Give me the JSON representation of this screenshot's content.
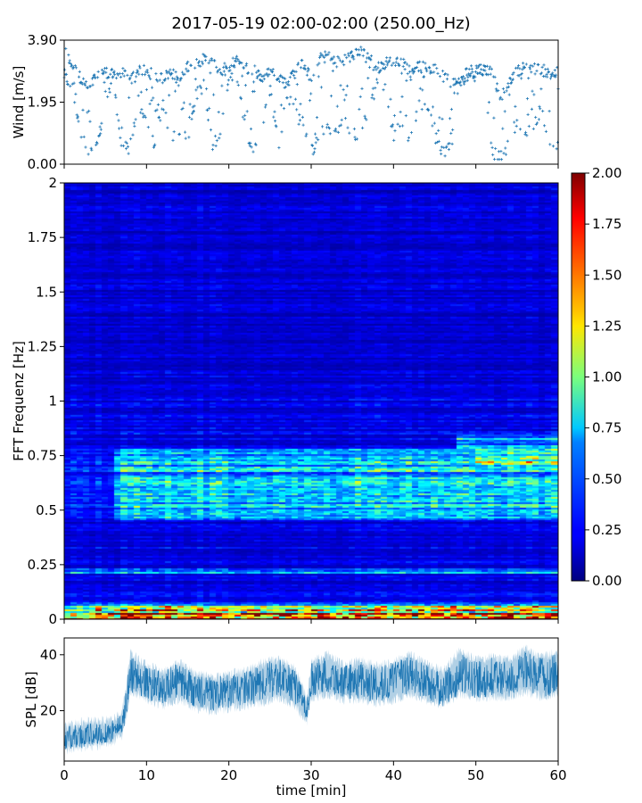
{
  "figure": {
    "title": "2017-05-19 02:00-02:00 (250.00_Hz)"
  },
  "chart_data": [
    {
      "type": "scatter",
      "panel": "wind",
      "ylabel": "Wind [m/s]",
      "xlim": [
        0,
        60
      ],
      "ylim": [
        0,
        3.9
      ],
      "yticks": [
        0.0,
        1.95,
        3.9
      ],
      "ytick_labels": [
        "0.00",
        "1.95",
        "3.90"
      ],
      "marker": "+",
      "color": "#1f77b4",
      "series_x": [
        0,
        1,
        2,
        3,
        4,
        5,
        6,
        7,
        8,
        9,
        10,
        11,
        12,
        13,
        14,
        15,
        16,
        17,
        18,
        19,
        20,
        21,
        22,
        23,
        24,
        25,
        26,
        27,
        28,
        29,
        30,
        31,
        32,
        33,
        34,
        35,
        36,
        37,
        38,
        39,
        40,
        41,
        42,
        43,
        44,
        45,
        46,
        47,
        48,
        49,
        50,
        51,
        52,
        53,
        54,
        55,
        56,
        57,
        58,
        59,
        60
      ],
      "series_y_upper": [
        3.6,
        3.1,
        2.7,
        2.3,
        2.9,
        2.9,
        2.8,
        2.9,
        2.6,
        3.0,
        2.9,
        2.8,
        2.7,
        2.9,
        2.6,
        3.1,
        3.2,
        3.3,
        3.2,
        2.9,
        3.1,
        3.3,
        3.0,
        3.0,
        2.7,
        2.9,
        2.8,
        2.5,
        3.0,
        3.2,
        2.7,
        3.3,
        3.4,
        3.2,
        3.3,
        3.4,
        3.6,
        3.4,
        3.0,
        3.2,
        3.2,
        3.3,
        2.9,
        3.1,
        3.0,
        3.0,
        2.9,
        2.5,
        2.7,
        2.9,
        3.0,
        3.0,
        2.9,
        2.0,
        2.6,
        2.9,
        3.1,
        3.0,
        3.0,
        2.8,
        2.9
      ],
      "series_y_lower": [
        2.8,
        2.4,
        1.1,
        0.3,
        0.5,
        2.0,
        2.6,
        0.5,
        0.5,
        2.0,
        1.2,
        0.6,
        2.0,
        0.5,
        0.8,
        0.7,
        2.2,
        2.5,
        0.6,
        1.0,
        2.6,
        2.8,
        1.0,
        0.4,
        1.0,
        2.4,
        0.6,
        1.8,
        1.6,
        1.3,
        0.4,
        0.8,
        1.2,
        1.0,
        1.4,
        0.9,
        1.0,
        1.8,
        2.3,
        2.6,
        0.9,
        1.4,
        0.8,
        1.8,
        2.0,
        0.9,
        0.4,
        0.6,
        2.5,
        2.7,
        2.8,
        2.7,
        0.4,
        0.2,
        0.6,
        1.4,
        0.8,
        1.2,
        1.8,
        0.6,
        0.6
      ]
    },
    {
      "type": "heatmap",
      "panel": "spectrogram",
      "ylabel": "FFT Frequenz [Hz]",
      "xlim": [
        0,
        60
      ],
      "ylim": [
        0,
        2
      ],
      "yticks": [
        0,
        0.25,
        0.5,
        0.75,
        1,
        1.25,
        1.5,
        1.75,
        2
      ],
      "ytick_labels": [
        "0",
        "0.25",
        "0.5",
        "0.75",
        "1",
        "1.25",
        "1.5",
        "1.75",
        "2"
      ],
      "colormap": "jet",
      "colorbar": {
        "vmin": 0,
        "vmax": 2,
        "ticks": [
          0.0,
          0.25,
          0.5,
          0.75,
          1.0,
          1.25,
          1.5,
          1.75,
          2.0
        ],
        "tick_labels": [
          "0.00",
          "0.25",
          "0.50",
          "0.75",
          "1.00",
          "1.25",
          "1.50",
          "1.75",
          "2.00"
        ]
      },
      "features": {
        "background_level": 0.2,
        "mid_band": {
          "freq_from": 0.45,
          "freq_to": 0.78,
          "start_min": 6,
          "level": 0.6
        },
        "low_band": {
          "freq_from": 0.0,
          "freq_to": 0.08,
          "level": 1.3
        },
        "line_0_2": {
          "freq": 0.22,
          "level": 0.5
        }
      }
    },
    {
      "type": "area",
      "panel": "spl",
      "xlabel": "time [min]",
      "ylabel": "SPL [dB]",
      "xlim": [
        0,
        60
      ],
      "ylim": [
        2,
        46
      ],
      "xticks": [
        0,
        10,
        20,
        30,
        40,
        50,
        60
      ],
      "xtick_labels": [
        "0",
        "10",
        "20",
        "30",
        "40",
        "50",
        "60"
      ],
      "yticks": [
        20,
        40
      ],
      "ytick_labels": [
        "20",
        "40"
      ],
      "color": "#1f77b4",
      "series": [
        {
          "x": [
            0,
            2,
            4,
            6,
            7,
            7.5,
            8,
            9,
            10,
            12,
            14,
            16,
            18,
            20,
            22,
            24,
            26,
            28,
            29.5,
            30,
            32,
            34,
            36,
            38,
            40,
            42,
            44,
            46,
            48,
            50,
            52,
            54,
            56,
            58,
            60
          ],
          "y_mid": [
            10,
            11,
            11.5,
            13,
            15,
            22,
            33,
            32,
            30,
            28,
            31,
            27,
            26,
            27,
            28,
            30,
            32,
            29,
            20,
            31,
            33,
            30,
            31,
            29,
            31,
            33,
            30,
            27,
            33,
            31,
            32,
            31,
            34,
            32,
            33
          ],
          "y_low": [
            6,
            7,
            7.5,
            9,
            11,
            17,
            27,
            26,
            24,
            22,
            24,
            21,
            20,
            21,
            22,
            23,
            25,
            22,
            16,
            25,
            26,
            24,
            24,
            23,
            24,
            26,
            24,
            22,
            26,
            25,
            25,
            25,
            27,
            25,
            26
          ],
          "y_high": [
            14,
            16,
            16,
            17,
            19,
            28,
            41,
            38,
            36,
            34,
            37,
            33,
            32,
            33,
            34,
            37,
            38,
            35,
            24,
            37,
            40,
            36,
            38,
            36,
            37,
            40,
            37,
            34,
            41,
            38,
            39,
            38,
            42,
            39,
            41
          ]
        }
      ]
    }
  ]
}
